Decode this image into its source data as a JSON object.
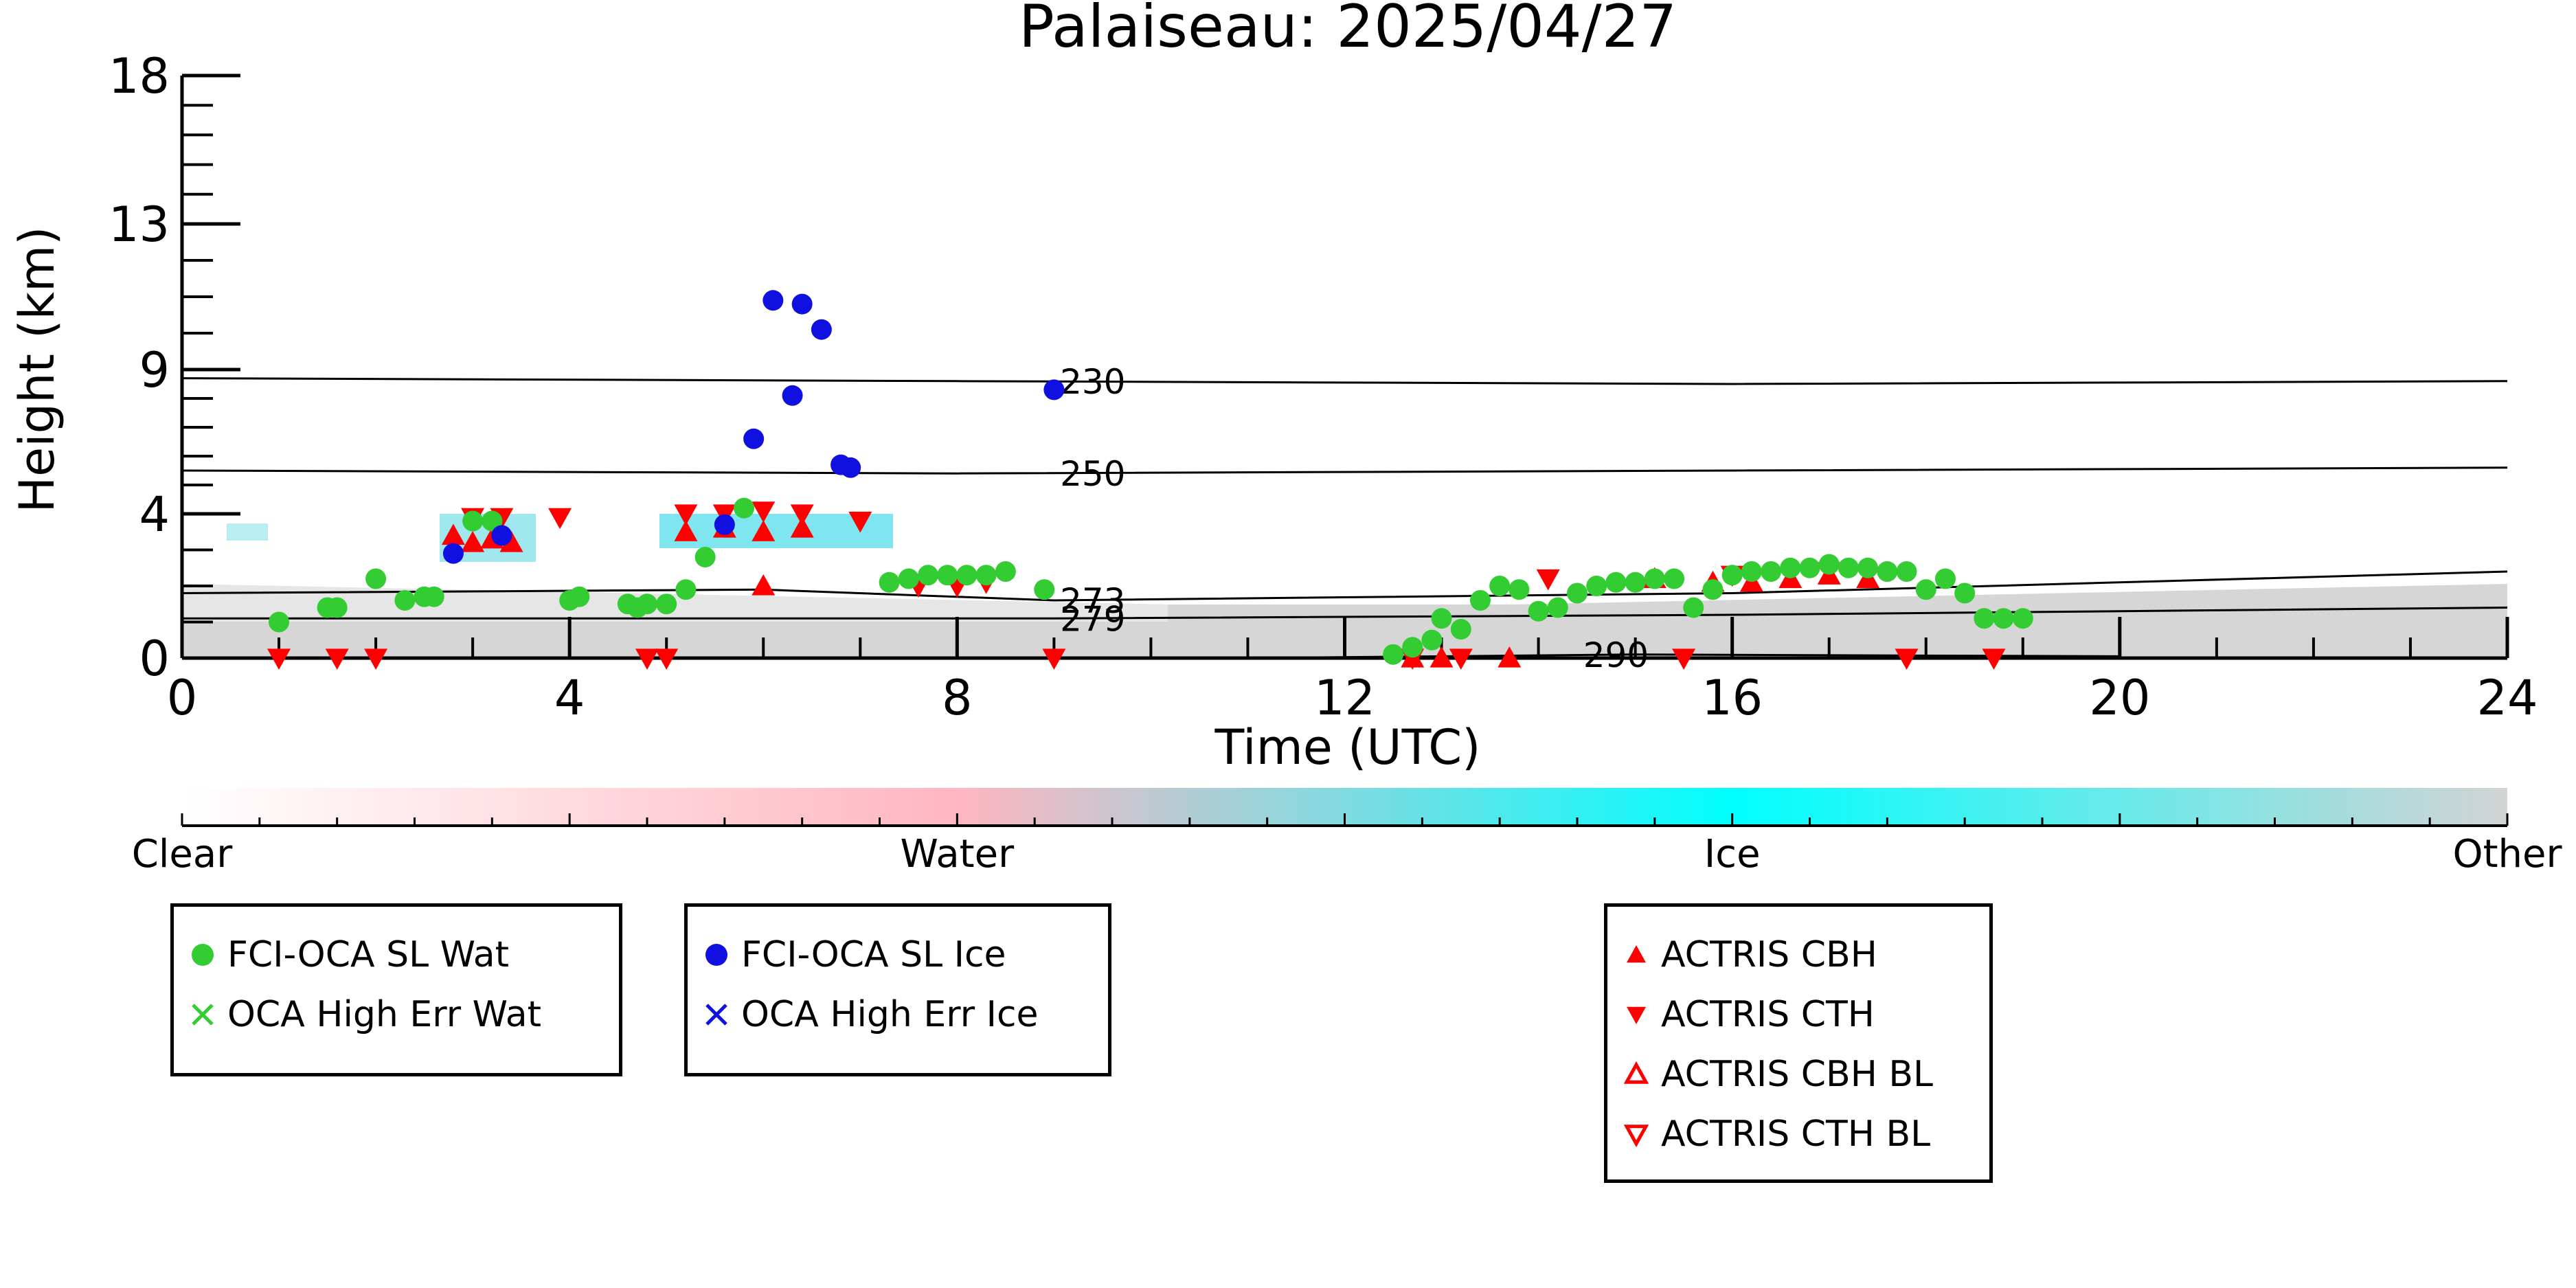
{
  "chart_data": {
    "type": "scatter",
    "title": "Palaiseau: 2025/04/27",
    "xlabel": "Time (UTC)",
    "ylabel": "Height (km)",
    "xlim": [
      0,
      24
    ],
    "x_ticks": [
      0,
      4,
      8,
      12,
      16,
      20,
      24
    ],
    "y_axis_scale": "pressure-like (non-linear)",
    "y_tick_labels": [
      0,
      4,
      9,
      13,
      18
    ],
    "colorbar": {
      "labels": [
        "Clear",
        "Water",
        "Ice",
        "Other"
      ],
      "colors": [
        "#ffffff",
        "#ffb6c1",
        "#00ffff",
        "#d3d3d3"
      ]
    },
    "isotherms": [
      {
        "label": "230",
        "points": [
          [
            0,
            8.7
          ],
          [
            8,
            8.6
          ],
          [
            16,
            8.5
          ],
          [
            24,
            8.6
          ]
        ]
      },
      {
        "label": "250",
        "points": [
          [
            0,
            5.5
          ],
          [
            8,
            5.4
          ],
          [
            16,
            5.5
          ],
          [
            24,
            5.6
          ]
        ]
      },
      {
        "label": "273",
        "points": [
          [
            0,
            1.8
          ],
          [
            6,
            1.9
          ],
          [
            9,
            1.6
          ],
          [
            16,
            1.8
          ],
          [
            24,
            2.4
          ]
        ]
      },
      {
        "label": "279",
        "points": [
          [
            0,
            1.1
          ],
          [
            9,
            1.1
          ],
          [
            16,
            1.2
          ],
          [
            24,
            1.4
          ]
        ]
      },
      {
        "label": "290",
        "points": [
          [
            11,
            0.0
          ],
          [
            15,
            0.1
          ],
          [
            20,
            0.05
          ]
        ]
      }
    ],
    "series": [
      {
        "name": "FCI-OCA SL Wat",
        "color": "#33cc33",
        "marker": "circle",
        "points": [
          [
            1.0,
            1.0
          ],
          [
            1.5,
            1.4
          ],
          [
            1.6,
            1.4
          ],
          [
            2.0,
            2.2
          ],
          [
            2.3,
            1.6
          ],
          [
            2.5,
            1.7
          ],
          [
            2.6,
            1.7
          ],
          [
            3.0,
            3.8
          ],
          [
            3.2,
            3.8
          ],
          [
            4.0,
            1.6
          ],
          [
            4.1,
            1.7
          ],
          [
            4.6,
            1.5
          ],
          [
            4.7,
            1.4
          ],
          [
            4.8,
            1.5
          ],
          [
            5.0,
            1.5
          ],
          [
            5.2,
            1.9
          ],
          [
            5.4,
            2.8
          ],
          [
            5.8,
            4.2
          ],
          [
            7.3,
            2.1
          ],
          [
            7.5,
            2.2
          ],
          [
            7.7,
            2.3
          ],
          [
            7.9,
            2.3
          ],
          [
            8.1,
            2.3
          ],
          [
            8.3,
            2.3
          ],
          [
            8.5,
            2.4
          ],
          [
            8.9,
            1.9
          ],
          [
            12.5,
            0.1
          ],
          [
            12.7,
            0.3
          ],
          [
            12.9,
            0.5
          ],
          [
            13.0,
            1.1
          ],
          [
            13.2,
            0.8
          ],
          [
            13.4,
            1.6
          ],
          [
            13.6,
            2.0
          ],
          [
            13.8,
            1.9
          ],
          [
            14.0,
            1.3
          ],
          [
            14.2,
            1.4
          ],
          [
            14.4,
            1.8
          ],
          [
            14.6,
            2.0
          ],
          [
            14.8,
            2.1
          ],
          [
            15.0,
            2.1
          ],
          [
            15.2,
            2.2
          ],
          [
            15.4,
            2.2
          ],
          [
            15.6,
            1.4
          ],
          [
            15.8,
            1.9
          ],
          [
            16.0,
            2.3
          ],
          [
            16.2,
            2.4
          ],
          [
            16.4,
            2.4
          ],
          [
            16.6,
            2.5
          ],
          [
            16.8,
            2.5
          ],
          [
            17.0,
            2.6
          ],
          [
            17.2,
            2.5
          ],
          [
            17.4,
            2.5
          ],
          [
            17.6,
            2.4
          ],
          [
            17.8,
            2.4
          ],
          [
            18.0,
            1.9
          ],
          [
            18.2,
            2.2
          ],
          [
            18.4,
            1.8
          ],
          [
            18.6,
            1.1
          ],
          [
            18.8,
            1.1
          ],
          [
            19.0,
            1.1
          ]
        ]
      },
      {
        "name": "FCI-OCA SL Ice",
        "color": "#1010e0",
        "marker": "circle",
        "points": [
          [
            2.8,
            2.9
          ],
          [
            3.3,
            3.4
          ],
          [
            5.6,
            3.7
          ],
          [
            5.9,
            6.6
          ],
          [
            6.1,
            10.9
          ],
          [
            6.3,
            8.1
          ],
          [
            6.4,
            10.8
          ],
          [
            6.6,
            10.1
          ],
          [
            6.8,
            5.7
          ],
          [
            6.9,
            5.6
          ],
          [
            9.0,
            8.3
          ]
        ]
      },
      {
        "name": "OCA High Err Wat",
        "color": "#33cc33",
        "marker": "x",
        "points": []
      },
      {
        "name": "OCA High Err Ice",
        "color": "#1010e0",
        "marker": "x",
        "points": []
      },
      {
        "name": "ACTRIS CBH",
        "color": "#ff0000",
        "marker": "triangle-up",
        "points": [
          [
            2.8,
            3.4
          ],
          [
            3.0,
            3.2
          ],
          [
            3.2,
            3.3
          ],
          [
            3.4,
            3.2
          ],
          [
            5.2,
            3.5
          ],
          [
            5.6,
            3.6
          ],
          [
            6.0,
            3.5
          ],
          [
            6.4,
            3.6
          ],
          [
            6.0,
            2.0
          ],
          [
            12.7,
            0.0
          ],
          [
            13.0,
            0.0
          ],
          [
            13.7,
            0.0
          ],
          [
            15.2,
            2.2
          ],
          [
            15.8,
            2.1
          ],
          [
            16.2,
            2.1
          ],
          [
            16.6,
            2.2
          ],
          [
            17.0,
            2.3
          ],
          [
            17.4,
            2.2
          ]
        ]
      },
      {
        "name": "ACTRIS CTH",
        "color": "#ff0000",
        "marker": "triangle-down",
        "points": [
          [
            1.0,
            0.0
          ],
          [
            1.6,
            0.0
          ],
          [
            2.0,
            0.0
          ],
          [
            3.0,
            3.9
          ],
          [
            3.3,
            3.9
          ],
          [
            3.9,
            3.9
          ],
          [
            4.8,
            0.0
          ],
          [
            5.0,
            0.0
          ],
          [
            5.2,
            4.0
          ],
          [
            5.6,
            4.0
          ],
          [
            6.0,
            4.1
          ],
          [
            6.4,
            4.0
          ],
          [
            7.0,
            3.8
          ],
          [
            7.6,
            2.0
          ],
          [
            8.0,
            2.0
          ],
          [
            8.3,
            2.1
          ],
          [
            9.0,
            0.0
          ],
          [
            12.7,
            0.0
          ],
          [
            13.2,
            0.0
          ],
          [
            14.1,
            2.2
          ],
          [
            15.5,
            0.0
          ],
          [
            16.0,
            2.3
          ],
          [
            17.0,
            2.4
          ],
          [
            17.8,
            0.0
          ],
          [
            18.7,
            0.0
          ]
        ]
      },
      {
        "name": "ACTRIS CBH BL",
        "color": "#ff0000",
        "marker": "triangle-up-open",
        "points": []
      },
      {
        "name": "ACTRIS CTH BL",
        "color": "#ff0000",
        "marker": "triangle-down-open",
        "points": []
      }
    ],
    "legend_groups": [
      [
        "FCI-OCA SL Wat",
        "OCA High Err Wat"
      ],
      [
        "FCI-OCA SL Ice",
        "OCA High Err Ice"
      ],
      [
        "ACTRIS CBH",
        "ACTRIS CTH",
        "ACTRIS CBH BL",
        "ACTRIS CTH BL"
      ]
    ],
    "grid": false
  }
}
